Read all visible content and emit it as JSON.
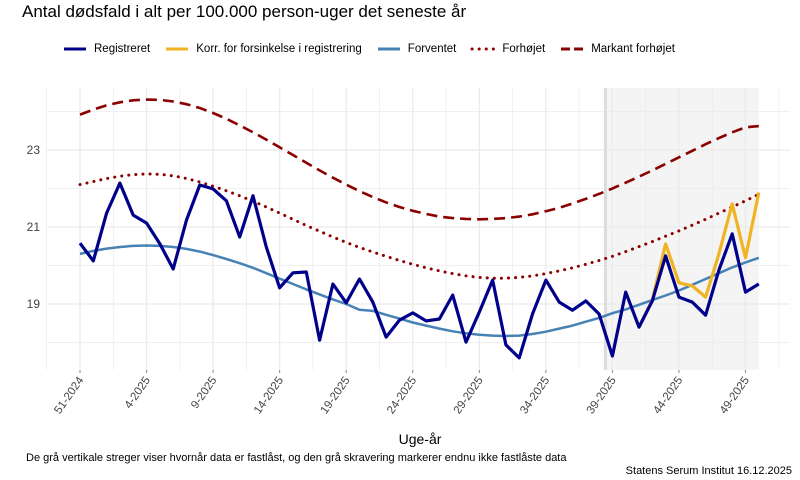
{
  "title": "Antal dødsfald i alt per 100.000 person-uger det seneste år",
  "footer_note": "De grå vertikale streger viser hvornår data er fastlåst, og den grå skravering markerer endnu ikke fastlåste data",
  "source": "Statens Serum Institut  16.12.2025",
  "chart_data": {
    "type": "line",
    "title": "Antal dødsfald i alt per 100.000 person-uger det seneste år",
    "xlabel": "Uge-år",
    "ylabel": "",
    "ylim": [
      17.0,
      24.8
    ],
    "yticks": [
      19,
      21,
      23
    ],
    "xtick_labels": [
      "51-2024",
      "4-2025",
      "9-2025",
      "14-2025",
      "19-2025",
      "24-2025",
      "29-2025",
      "34-2025",
      "39-2025",
      "44-2025",
      "49-2025"
    ],
    "x_first": "51-2024",
    "x_last": "50-2025",
    "grid": true,
    "legend_position": "top",
    "unlocked_from": "40-2025",
    "series": [
      {
        "name": "Registreret",
        "color": "#00008B",
        "style": "solid",
        "values": [
          20.58,
          20.12,
          21.36,
          22.14,
          21.31,
          21.1,
          20.56,
          19.91,
          21.18,
          22.09,
          21.99,
          21.68,
          20.74,
          21.81,
          20.48,
          19.42,
          19.81,
          19.83,
          18.06,
          19.52,
          19.03,
          19.65,
          19.05,
          18.14,
          18.58,
          18.77,
          18.56,
          18.61,
          19.23,
          18.01,
          18.79,
          19.62,
          17.94,
          17.6,
          18.74,
          19.62,
          19.05,
          18.84,
          19.08,
          18.74,
          17.65,
          19.31,
          18.4,
          19.08,
          20.25,
          19.18,
          19.05,
          18.71,
          19.88,
          20.82,
          19.31,
          19.52
        ]
      },
      {
        "name": "Korr. for forsinkelse i registrering",
        "color": "#F0B323",
        "style": "solid",
        "start_index": 42,
        "values": [
          18.4,
          19.1,
          20.56,
          19.55,
          19.47,
          19.18,
          20.3,
          21.6,
          20.2,
          21.9
        ]
      },
      {
        "name": "Forventet",
        "color": "#4682B4",
        "style": "solid",
        "values": [
          20.3,
          20.38,
          20.44,
          20.48,
          20.51,
          20.52,
          20.51,
          20.48,
          20.43,
          20.36,
          20.27,
          20.17,
          20.06,
          19.94,
          19.8,
          19.66,
          19.52,
          19.38,
          19.25,
          19.12,
          19.0,
          18.85,
          18.82,
          18.72,
          18.62,
          18.52,
          18.44,
          18.36,
          18.29,
          18.24,
          18.2,
          18.18,
          18.17,
          18.18,
          18.22,
          18.28,
          18.36,
          18.44,
          18.54,
          18.64,
          18.76,
          18.86,
          18.98,
          19.1,
          19.22,
          19.35,
          19.5,
          19.65,
          19.8,
          19.95,
          20.08,
          20.2
        ]
      },
      {
        "name": "Forhøjet",
        "color": "#8B0000",
        "style": "dotted",
        "values": [
          22.1,
          22.18,
          22.26,
          22.32,
          22.36,
          22.38,
          22.37,
          22.33,
          22.26,
          22.17,
          22.06,
          21.94,
          21.81,
          21.67,
          21.52,
          21.36,
          21.2,
          21.04,
          20.89,
          20.74,
          20.6,
          20.47,
          20.35,
          20.24,
          20.13,
          20.03,
          19.94,
          19.86,
          19.79,
          19.73,
          19.69,
          19.67,
          19.67,
          19.69,
          19.73,
          19.79,
          19.86,
          19.94,
          20.03,
          20.13,
          20.24,
          20.36,
          20.49,
          20.62,
          20.76,
          20.9,
          21.05,
          21.2,
          21.36,
          21.52,
          21.68,
          21.85
        ]
      },
      {
        "name": "Markant forhøjet",
        "color": "#8B0000",
        "style": "dashed",
        "values": [
          23.92,
          24.05,
          24.16,
          24.24,
          24.29,
          24.31,
          24.3,
          24.26,
          24.19,
          24.09,
          23.96,
          23.81,
          23.64,
          23.46,
          23.27,
          23.07,
          22.87,
          22.67,
          22.47,
          22.28,
          22.1,
          21.93,
          21.78,
          21.64,
          21.52,
          21.42,
          21.34,
          21.27,
          21.23,
          21.21,
          21.2,
          21.21,
          21.23,
          21.27,
          21.33,
          21.41,
          21.5,
          21.61,
          21.73,
          21.86,
          22.0,
          22.15,
          22.31,
          22.47,
          22.64,
          22.81,
          22.98,
          23.15,
          23.31,
          23.46,
          23.59,
          23.62
        ]
      }
    ]
  }
}
